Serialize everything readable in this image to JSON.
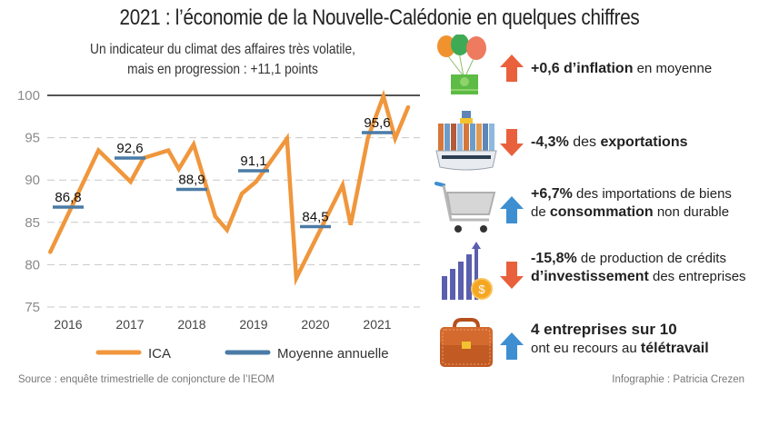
{
  "title": "2021 : l’économie de la Nouvelle-Calédonie en quelques chiffres",
  "subtitle": {
    "line1": "Un indicateur du climat des affaires très volatile,",
    "line2": "mais en progression : +11,1 points"
  },
  "chart_data": {
    "type": "line",
    "title": "Un indicateur du climat des affaires très volatile, mais en progression : +11,1 points",
    "xlabel": "",
    "ylabel": "",
    "ylim": [
      75,
      100
    ],
    "yticks": [
      100,
      95,
      90,
      85,
      80,
      75
    ],
    "xticks": [
      "2016",
      "2017",
      "2018",
      "2019",
      "2020",
      "2021"
    ],
    "grid": "dashed horizontal",
    "legend_position": "bottom",
    "series": [
      {
        "name": "ICA",
        "color": "#f0963c",
        "x": [
          2015.71,
          2016.49,
          2017.01,
          2017.22,
          2017.62,
          2017.79,
          2018.03,
          2018.38,
          2018.57,
          2018.81,
          2019.04,
          2019.54,
          2019.69,
          2020.44,
          2020.57,
          2020.85,
          2021.1,
          2021.29,
          2021.5
        ],
        "values": [
          81.5,
          93.5,
          89.8,
          92.6,
          93.5,
          91.3,
          94.2,
          85.7,
          84.1,
          88.4,
          89.8,
          94.9,
          78.4,
          89.4,
          84.7,
          95.0,
          99.9,
          94.9,
          98.6
        ]
      },
      {
        "name": "Moyenne annuelle",
        "color": "#4a7ba6",
        "years": [
          "2016",
          "2017",
          "2018",
          "2019",
          "2020",
          "2021"
        ],
        "values": [
          86.8,
          92.6,
          88.9,
          91.1,
          84.5,
          95.6
        ],
        "labels": [
          "86,8",
          "92,6",
          "88,9",
          "91,1",
          "84,5",
          "95,6"
        ]
      }
    ],
    "reference_line": 100
  },
  "legend": {
    "ica": "ICA",
    "moyenne": "Moyenne annuelle"
  },
  "kpis": [
    {
      "icon": "money-balloons-icon",
      "direction": "up",
      "arrow_color": "#e8613c",
      "bold1": "+0,6 d’inflation",
      "rest1": " en moyenne",
      "line2_pre": "",
      "bold2": "",
      "line2_post": ""
    },
    {
      "icon": "cargo-ship-icon",
      "direction": "down",
      "arrow_color": "#e8613c",
      "pre1": "",
      "bold1": "-4,3%",
      "rest1": " des ",
      "bold1b": "exportations"
    },
    {
      "icon": "shopping-cart-icon",
      "direction": "up",
      "arrow_color": "#3d8fd1",
      "bold1": "+6,7%",
      "rest1": " des importations de biens",
      "line2_pre": "de ",
      "bold2": "consommation",
      "line2_post": " non durable"
    },
    {
      "icon": "bar-chart-coin-icon",
      "direction": "down",
      "arrow_color": "#e8613c",
      "bold1": "-15,8%",
      "rest1": " de production de crédits",
      "line2_pre": "",
      "bold2": "d’investissement",
      "line2_post": " des entreprises"
    },
    {
      "icon": "briefcase-icon",
      "direction": "up",
      "arrow_color": "#3d8fd1",
      "bold1": "4 entreprises sur 10",
      "rest1": "",
      "line2_pre": "ont eu recours au ",
      "bold2": "télétravail",
      "line2_post": ""
    }
  ],
  "footer": {
    "source": "Source : enquête trimestrielle de conjoncture de l’IEOM",
    "credit": "Infographie : Patricia Crezen"
  }
}
